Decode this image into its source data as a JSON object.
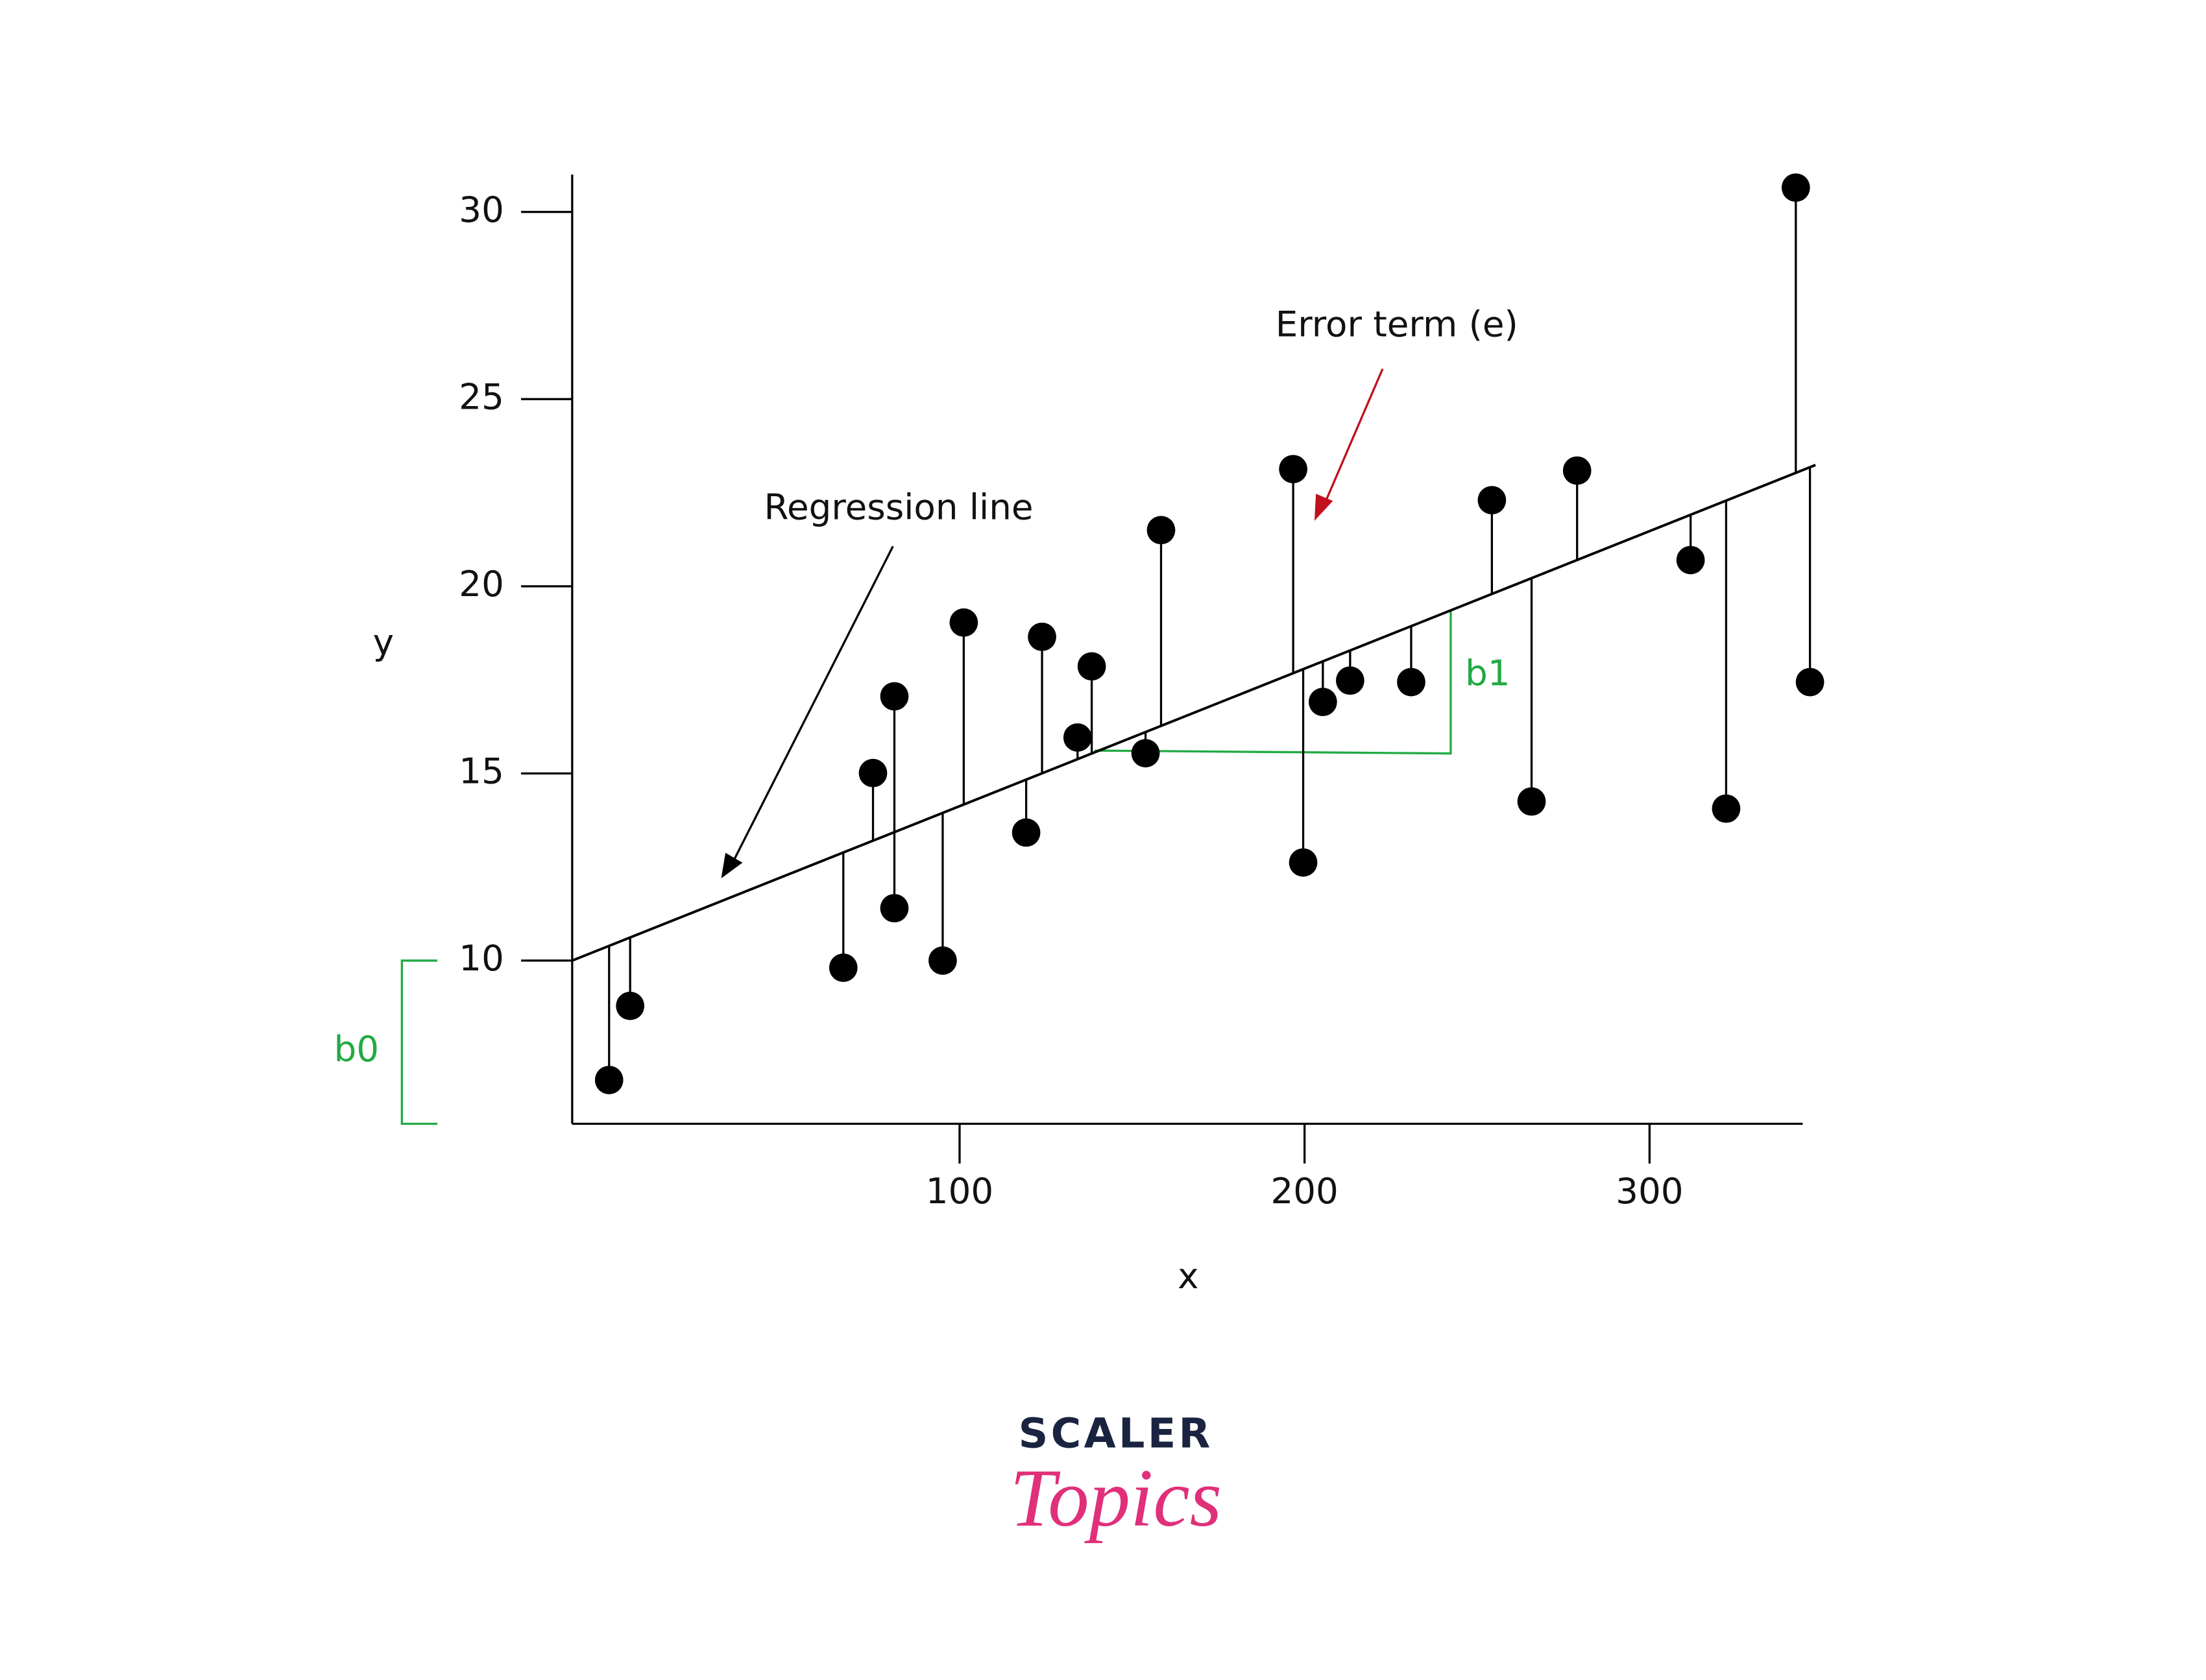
{
  "chart_data": {
    "type": "scatter",
    "x_label": "x",
    "y_label": "y",
    "x": [
      -1.6,
      4.5,
      66.3,
      74.9,
      81.1,
      81.1,
      95.1,
      101.2,
      119.3,
      123.9,
      134.2,
      138.3,
      153.9,
      158.4,
      196.7,
      199.6,
      205.3,
      213.2,
      230.9,
      254.3,
      265.8,
      279.0,
      311.9,
      322.2,
      342.4,
      346.5
    ],
    "values": [
      6.81,
      8.79,
      9.81,
      15.01,
      17.06,
      11.4,
      10.0,
      19.03,
      13.42,
      18.65,
      15.96,
      17.86,
      15.54,
      21.5,
      23.13,
      12.62,
      16.91,
      17.48,
      17.44,
      22.3,
      14.25,
      23.09,
      20.7,
      14.06,
      30.65,
      17.44
    ],
    "color": "#000000",
    "regression": {
      "x": [
        -12.3,
        348.1
      ],
      "y": [
        10,
        23.24
      ],
      "color": "#000000"
    },
    "xlim": [
      -12.3,
      344.4
    ],
    "ylim": [
      5.64,
      31.0
    ],
    "xticks": [
      100,
      200,
      300
    ],
    "yticks": [
      10,
      15,
      20,
      25,
      30
    ],
    "annotations": {
      "regression_line": "Regression line",
      "error_term": "Error term (e)",
      "intercept": "b0",
      "slope": "b1"
    }
  },
  "logo": {
    "top": "SCALER",
    "bottom": "Topics"
  }
}
